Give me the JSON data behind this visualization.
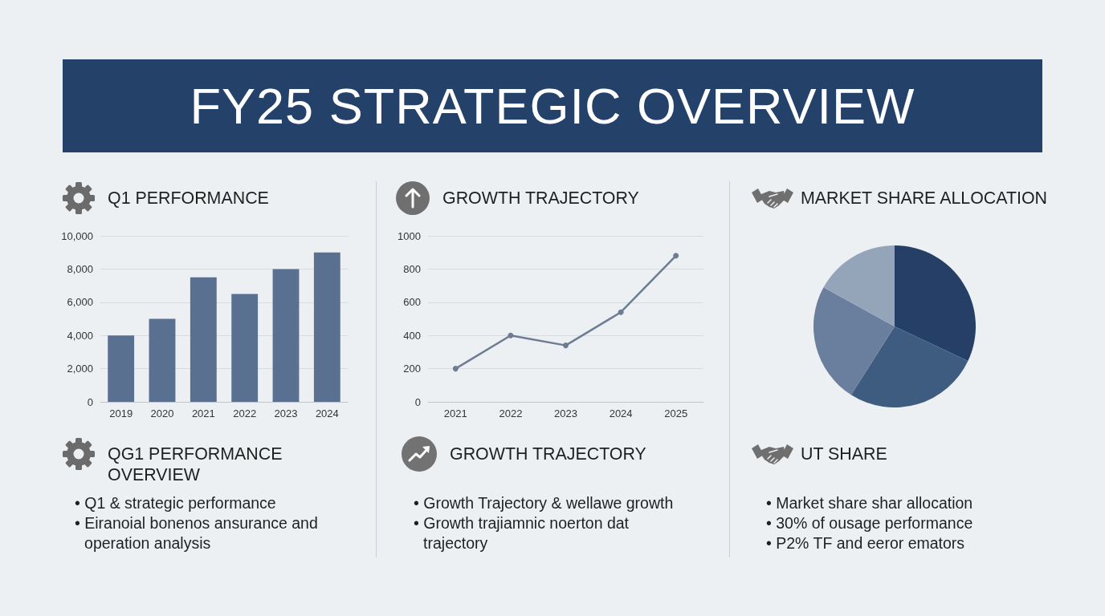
{
  "chart_data": [
    {
      "type": "other",
      "title": "FY25 STRATEGIC OVERVIEW"
    },
    {
      "type": "bar",
      "title": "Q1 PERFORMANCE",
      "categories": [
        "2019",
        "2020",
        "2021",
        "2022",
        "2023",
        "2024"
      ],
      "values": [
        4000,
        5000,
        7500,
        6500,
        8000,
        9000
      ],
      "color": "#5a7091",
      "ylim": [
        0,
        10000
      ],
      "yticks": [
        0,
        {
          "value": 2000,
          "label": "2,000"
        },
        {
          "value": 4000,
          "label": "4,000"
        },
        {
          "value": 6000,
          "label": "6,000"
        },
        {
          "value": 8000,
          "label": "8,000"
        },
        {
          "value": 10000,
          "label": "10,000"
        }
      ],
      "grid": "y"
    },
    {
      "type": "line",
      "title": "GROWTH TRAJECTORY",
      "categories": [
        "2021",
        "2022",
        "2023",
        "2024",
        "2025"
      ],
      "values": [
        200,
        400,
        340,
        540,
        880
      ],
      "color": "#6d7c92",
      "ylim": [
        0,
        1000
      ],
      "yticks": [
        0,
        200,
        400,
        600,
        800,
        1000
      ],
      "grid": "y",
      "marker": "circle"
    },
    {
      "type": "pie",
      "title": "MARKET SHARE ALLOCATION",
      "categories": [
        null,
        null,
        null,
        null
      ],
      "values": [
        32,
        27,
        24,
        17
      ],
      "colors": [
        "#253f66",
        "#3e5b80",
        "#6a7f9d",
        "#94a5ba"
      ]
    },
    {
      "type": "other",
      "title": "QG1 PERFORMANCE OVERVIEW",
      "annotations": [
        "• Q1 & strategic performance",
        "• Eiranoial bonenos ansurance and operation analysis"
      ]
    },
    {
      "type": "other",
      "title": "GROWTH TRAJECTORY",
      "annotations": [
        "• Growth Trajectory & wellawe growth",
        "• Growth trajiamnic noerton dat trajectory"
      ]
    },
    {
      "type": "other",
      "title": "UT SHARE",
      "annotations": [
        "• Market share shar allocation",
        "• 30% of ousage performance",
        "• P2% TF and eeror emators"
      ]
    }
  ]
}
